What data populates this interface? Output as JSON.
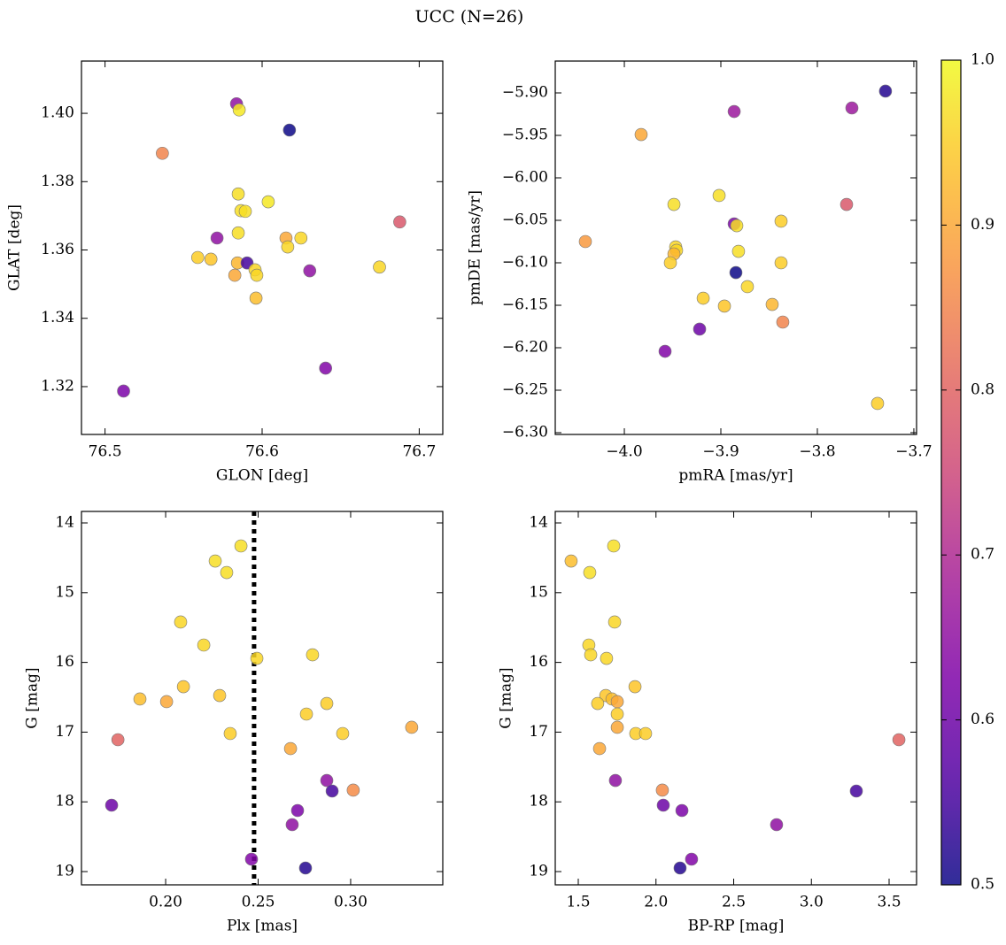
{
  "title": "UCC (N=26)",
  "colorbar": {
    "colormap": "plasma",
    "lim": [
      0.5,
      1.0
    ],
    "ticks": [
      0.5,
      0.6,
      0.7,
      0.8,
      0.9,
      {
        "value": 1,
        "label": "1.0"
      }
    ]
  },
  "chart_data": [
    {
      "type": "scatter",
      "xlabel": "GLON [deg]",
      "ylabel": "GLAT [deg]",
      "xlim": [
        76.485,
        76.715
      ],
      "ylim": [
        1.306,
        1.4153
      ],
      "xticks": [
        76.5,
        76.6,
        76.7
      ],
      "yticks": [
        1.32,
        1.34,
        1.36,
        1.38,
        {
          "value": 1.4,
          "label": "1.40"
        }
      ],
      "x": [
        76.5837,
        76.5854,
        76.6174,
        76.5365,
        76.5848,
        76.6039,
        76.5865,
        76.5893,
        76.5848,
        76.5713,
        76.6152,
        76.6247,
        76.6163,
        76.6876,
        76.559,
        76.5674,
        76.5843,
        76.5904,
        76.5955,
        76.5966,
        76.5826,
        76.6303,
        76.6747,
        76.5961,
        76.6404,
        76.5118
      ],
      "values": [
        1.4028,
        1.401,
        1.3951,
        1.3883,
        1.3764,
        1.3741,
        1.3715,
        1.3713,
        1.365,
        1.3635,
        1.3635,
        1.3635,
        1.3609,
        1.3682,
        1.3578,
        1.3573,
        1.3562,
        1.3562,
        1.3542,
        1.3526,
        1.3526,
        1.3539,
        1.355,
        1.3459,
        1.3254,
        1.3187
      ],
      "color_values": [
        0.65,
        0.98,
        0.5,
        0.85,
        0.97,
        0.98,
        0.97,
        0.97,
        0.97,
        0.65,
        0.9,
        0.96,
        0.96,
        0.78,
        0.95,
        0.94,
        0.92,
        0.55,
        0.96,
        0.96,
        0.9,
        0.65,
        0.96,
        0.93,
        0.63,
        0.62
      ]
    },
    {
      "type": "scatter",
      "xlabel": "pmRA [mas/yr]",
      "ylabel": "pmDE [mas/yr]",
      "xlim": [
        -4.0716,
        -3.6972
      ],
      "ylim": [
        -6.3021,
        -5.8625
      ],
      "xticks": [
        {
          "value": -4.0,
          "label": "−4.0"
        },
        {
          "value": -3.9,
          "label": "−3.9"
        },
        {
          "value": -3.8,
          "label": "−3.8"
        },
        {
          "value": -3.7,
          "label": "−3.7"
        }
      ],
      "yticks": [
        {
          "value": -6.3,
          "label": "−6.30"
        },
        {
          "value": -6.25,
          "label": "−6.25"
        },
        {
          "value": -6.2,
          "label": "−6.20"
        },
        {
          "value": -6.15,
          "label": "−6.15"
        },
        {
          "value": -6.1,
          "label": "−6.10"
        },
        {
          "value": -6.05,
          "label": "−6.05"
        },
        {
          "value": -6.0,
          "label": "−6.00"
        },
        {
          "value": -5.95,
          "label": "−5.95"
        },
        {
          "value": -5.9,
          "label": "−5.90"
        }
      ],
      "x": [
        -3.7294,
        -3.7642,
        -3.8862,
        -3.9826,
        -3.9018,
        -3.9486,
        -3.7697,
        -3.8862,
        -3.8835,
        -3.8376,
        -4.0404,
        -3.9468,
        -3.9459,
        -3.9486,
        -3.8817,
        -3.9523,
        -3.8376,
        -3.8844,
        -3.8725,
        -3.9183,
        -3.8963,
        -3.8468,
        -3.8358,
        -3.922,
        -3.9578,
        -3.7376
      ],
      "values": [
        -5.8979,
        -5.9177,
        -5.9219,
        -5.949,
        -6.0208,
        -6.0313,
        -6.0313,
        -6.0542,
        -6.0563,
        -6.051,
        -6.075,
        -6.0813,
        -6.0854,
        -6.0896,
        -6.0865,
        -6.1,
        -6.1,
        -6.1115,
        -6.1281,
        -6.1417,
        -6.151,
        -6.149,
        -6.1698,
        -6.1781,
        -6.2042,
        -6.2656
      ],
      "color_values": [
        0.52,
        0.67,
        0.67,
        0.9,
        0.97,
        0.97,
        0.78,
        0.62,
        0.97,
        0.95,
        0.88,
        0.96,
        0.96,
        0.92,
        0.97,
        0.95,
        0.95,
        0.5,
        0.96,
        0.95,
        0.94,
        0.92,
        0.85,
        0.6,
        0.63,
        0.95
      ]
    },
    {
      "type": "scatter",
      "xlabel": "Plx [mas]",
      "ylabel": "G [mag]",
      "xlim": [
        0.1545,
        0.3498
      ],
      "ylim": [
        19.19,
        13.835
      ],
      "xticks": [
        {
          "value": 0.2,
          "label": "0.20"
        },
        0.25,
        {
          "value": 0.3,
          "label": "0.30"
        }
      ],
      "yticks": [
        14,
        15,
        16,
        17,
        18,
        19
      ],
      "vline": 0.2478,
      "x": [
        0.2407,
        0.2268,
        0.233,
        0.2081,
        0.2206,
        0.2493,
        0.2794,
        0.2096,
        0.2292,
        0.1861,
        0.2005,
        0.2871,
        0.2761,
        0.2349,
        0.2957,
        0.333,
        0.1742,
        0.2675,
        0.2871,
        0.3014,
        0.29,
        0.1708,
        0.2713,
        0.2684,
        0.2464,
        0.2756
      ],
      "values": [
        14.33,
        14.546,
        14.711,
        15.421,
        15.751,
        15.942,
        15.891,
        16.348,
        16.475,
        16.525,
        16.563,
        16.589,
        16.741,
        17.02,
        17.02,
        16.931,
        17.109,
        17.236,
        17.693,
        17.832,
        17.845,
        18.048,
        18.124,
        18.327,
        18.822,
        18.949
      ],
      "color_values": [
        0.97,
        0.97,
        0.97,
        0.96,
        0.96,
        0.96,
        0.96,
        0.94,
        0.94,
        0.93,
        0.9,
        0.95,
        0.95,
        0.95,
        0.95,
        0.9,
        0.8,
        0.9,
        0.65,
        0.86,
        0.55,
        0.6,
        0.62,
        0.65,
        0.63,
        0.52
      ]
    },
    {
      "type": "scatter",
      "xlabel": "BP-RP [mag]",
      "ylabel": "G [mag]",
      "xlim": [
        1.3519,
        3.6766
      ],
      "ylim": [
        19.19,
        13.835
      ],
      "xticks": [
        1.5,
        {
          "value": 2,
          "label": "2.0"
        },
        2.5,
        {
          "value": 3,
          "label": "3.0"
        },
        3.5
      ],
      "yticks": [
        14,
        15,
        16,
        17,
        18,
        19
      ],
      "x": [
        1.728,
        1.454,
        1.574,
        1.734,
        1.568,
        1.58,
        1.682,
        1.865,
        1.677,
        1.717,
        1.751,
        1.625,
        1.751,
        1.87,
        1.933,
        1.751,
        3.563,
        1.637,
        1.739,
        2.041,
        3.289,
        2.047,
        2.167,
        2.776,
        2.229,
        2.155
      ],
      "values": [
        14.33,
        14.546,
        14.711,
        15.421,
        15.751,
        15.891,
        15.942,
        16.348,
        16.475,
        16.525,
        16.563,
        16.589,
        16.741,
        17.02,
        17.02,
        16.931,
        17.109,
        17.236,
        17.693,
        17.832,
        17.845,
        18.048,
        18.124,
        18.327,
        18.822,
        18.949
      ],
      "color_values": [
        0.97,
        0.93,
        0.97,
        0.96,
        0.96,
        0.96,
        0.96,
        0.94,
        0.94,
        0.93,
        0.9,
        0.95,
        0.95,
        0.95,
        0.95,
        0.9,
        0.8,
        0.9,
        0.65,
        0.86,
        0.55,
        0.6,
        0.62,
        0.65,
        0.63,
        0.52
      ]
    }
  ]
}
